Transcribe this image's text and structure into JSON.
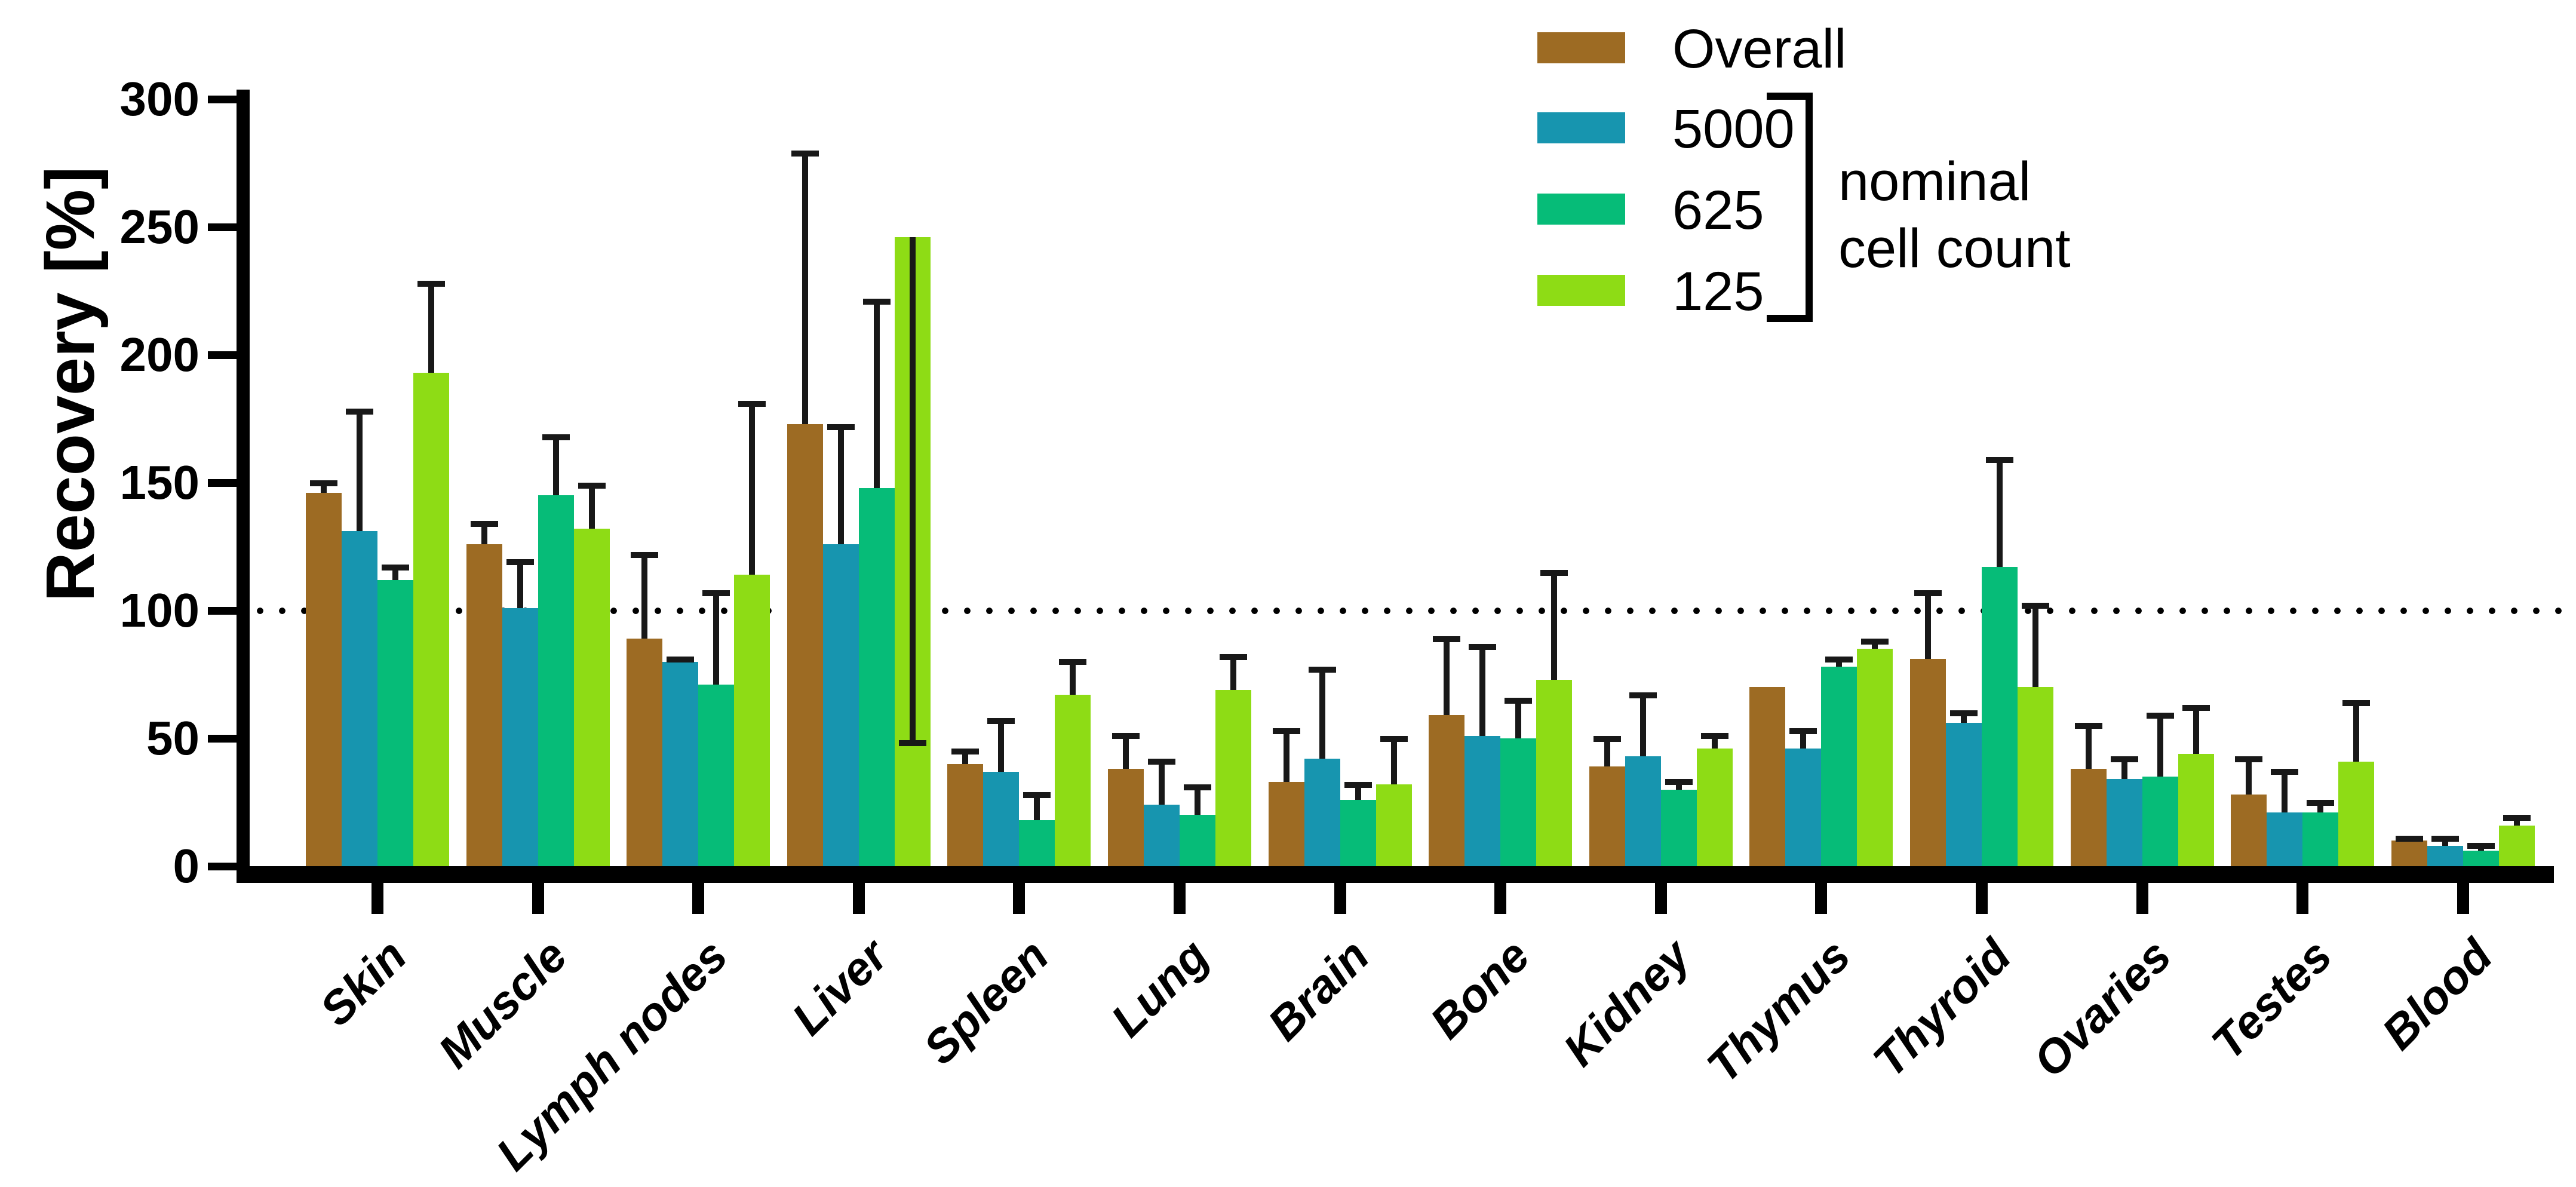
{
  "chart_data": {
    "type": "bar",
    "title": "",
    "ylabel": "Recovery [%]",
    "xlabel": "",
    "ylim": [
      0,
      300
    ],
    "yticks": [
      0,
      50,
      100,
      150,
      200,
      250,
      300
    ],
    "reference_line": 100,
    "grid": false,
    "legend_position": "top-right",
    "categories": [
      "Skin",
      "Muscle",
      "Lymph nodes",
      "Liver",
      "Spleen",
      "Lung",
      "Brain",
      "Bone",
      "Kidney",
      "Thymus",
      "Thyroid",
      "Ovaries",
      "Testes",
      "Blood"
    ],
    "series": [
      {
        "name": "Overall",
        "color": "#9D6B23",
        "values": [
          146,
          126,
          89,
          173,
          40,
          38,
          33,
          59,
          39,
          70,
          81,
          38,
          28,
          10
        ],
        "err_high": [
          151,
          135,
          123,
          280,
          46,
          52,
          54,
          90,
          51,
          null,
          108,
          56,
          43,
          12
        ],
        "err_low": [
          null,
          null,
          null,
          null,
          null,
          null,
          null,
          null,
          null,
          null,
          null,
          null,
          null,
          null
        ]
      },
      {
        "name": "5000",
        "color": "#1795AF",
        "values": [
          131,
          101,
          80,
          126,
          37,
          24,
          42,
          51,
          43,
          46,
          56,
          34,
          21,
          8
        ],
        "err_high": [
          179,
          120,
          82,
          173,
          58,
          42,
          78,
          87,
          68,
          54,
          61,
          43,
          38,
          12
        ],
        "err_low": [
          null,
          null,
          null,
          null,
          null,
          null,
          null,
          null,
          null,
          null,
          null,
          null,
          null,
          null
        ]
      },
      {
        "name": "625",
        "color": "#06BC78",
        "values": [
          112,
          145,
          71,
          148,
          18,
          20,
          26,
          50,
          30,
          78,
          117,
          35,
          21,
          6
        ],
        "err_high": [
          118,
          169,
          108,
          222,
          29,
          32,
          33,
          66,
          34,
          82,
          160,
          60,
          26,
          9
        ],
        "err_low": [
          null,
          null,
          null,
          null,
          null,
          null,
          null,
          null,
          null,
          null,
          null,
          null,
          null,
          null
        ]
      },
      {
        "name": "125",
        "color": "#8EDC15",
        "values": [
          193,
          132,
          114,
          246,
          67,
          69,
          32,
          73,
          46,
          85,
          70,
          44,
          41,
          16
        ],
        "err_high": [
          229,
          150,
          182,
          null,
          81,
          83,
          51,
          116,
          52,
          89,
          103,
          63,
          65,
          20
        ],
        "err_low": [
          null,
          null,
          null,
          47,
          null,
          null,
          null,
          null,
          null,
          null,
          null,
          null,
          null,
          null
        ]
      }
    ],
    "legend": {
      "entries": [
        "Overall",
        "5000",
        "625",
        "125"
      ],
      "bracket_series": [
        "5000",
        "625",
        "125"
      ],
      "bracket_label_line1": "nominal",
      "bracket_label_line2": "cell count"
    }
  }
}
